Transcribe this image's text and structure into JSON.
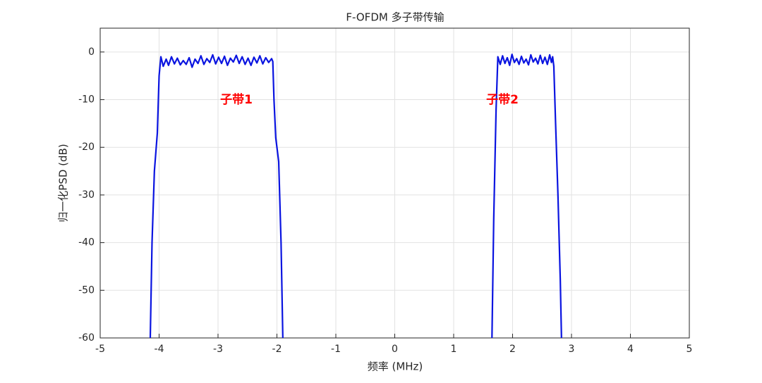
{
  "chart_data": {
    "type": "line",
    "title": "F-OFDM 多子带传输",
    "x_label": "频率 (MHz)",
    "y_label": "归一化PSD (dB)",
    "x": [
      -4.15,
      -4.12,
      -4.08,
      -4.03,
      -4.0,
      -3.97,
      -3.93,
      -3.88,
      -3.84,
      -3.79,
      -3.74,
      -3.69,
      -3.64,
      -3.59,
      -3.54,
      -3.49,
      -3.44,
      -3.39,
      -3.34,
      -3.29,
      -3.24,
      -3.19,
      -3.14,
      -3.09,
      -3.04,
      -2.99,
      -2.94,
      -2.89,
      -2.84,
      -2.79,
      -2.74,
      -2.69,
      -2.64,
      -2.59,
      -2.54,
      -2.49,
      -2.44,
      -2.39,
      -2.34,
      -2.29,
      -2.24,
      -2.19,
      -2.14,
      -2.09,
      -2.07,
      -2.05,
      -2.02,
      -1.97,
      -1.93,
      -1.9,
      null,
      1.65,
      1.68,
      1.72,
      1.75,
      1.79,
      1.83,
      1.87,
      1.91,
      1.95,
      1.99,
      2.03,
      2.07,
      2.11,
      2.15,
      2.19,
      2.23,
      2.27,
      2.31,
      2.35,
      2.39,
      2.43,
      2.47,
      2.51,
      2.55,
      2.59,
      2.63,
      2.66,
      2.68,
      2.7,
      2.73,
      2.77,
      2.81,
      2.83
    ],
    "series": [
      {
        "color": "#0a14e0",
        "values": [
          -60,
          -40,
          -25,
          -17,
          -5,
          -1,
          -3,
          -1.5,
          -2.8,
          -1,
          -2.5,
          -1.3,
          -2.7,
          -1.8,
          -2.6,
          -1.2,
          -3.2,
          -1.5,
          -2.4,
          -0.8,
          -2.6,
          -1.4,
          -2.2,
          -0.6,
          -2.5,
          -1.1,
          -2.4,
          -0.9,
          -2.8,
          -1.3,
          -2.1,
          -0.7,
          -2.4,
          -1.0,
          -2.6,
          -1.3,
          -2.8,
          -1.1,
          -2.3,
          -0.8,
          -2.5,
          -1.2,
          -2.2,
          -1.4,
          -2,
          -10,
          -18,
          -23,
          -40,
          -60,
          null,
          -60,
          -35,
          -12,
          -1,
          -2.6,
          -0.8,
          -2.4,
          -1.2,
          -2.8,
          -0.5,
          -2.2,
          -1.4,
          -2.6,
          -0.9,
          -2.3,
          -1.5,
          -2.7,
          -0.6,
          -2.1,
          -1.3,
          -2.5,
          -0.7,
          -2.4,
          -1.1,
          -2.6,
          -0.6,
          -2.2,
          -1,
          -3,
          -15,
          -30,
          -48,
          -60
        ]
      }
    ],
    "annotations": [
      "子带1",
      "子带2"
    ],
    "annotation_color": "#ff0000",
    "xlim": [
      -5,
      5
    ],
    "xticks": [
      -5,
      -4,
      -3,
      -2,
      -1,
      0,
      1,
      2,
      3,
      4,
      5
    ],
    "ylim": [
      -60,
      5
    ],
    "yticks": [
      -60,
      -50,
      -40,
      -30,
      -20,
      -10,
      0
    ],
    "grid": true
  }
}
